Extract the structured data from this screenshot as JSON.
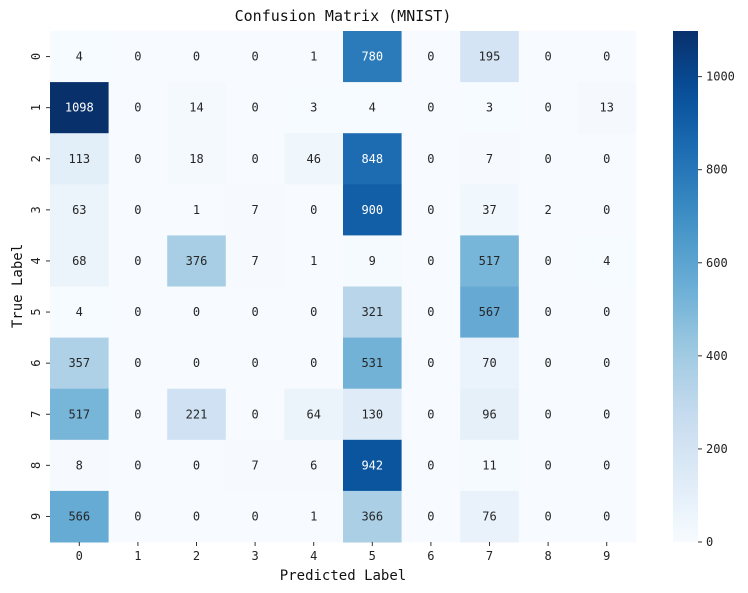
{
  "chart_data": {
    "type": "heatmap",
    "title": "Confusion Matrix (MNIST)",
    "xlabel": "Predicted Label",
    "ylabel": "True Label",
    "x_categories": [
      "0",
      "1",
      "2",
      "3",
      "4",
      "5",
      "6",
      "7",
      "8",
      "9"
    ],
    "y_categories": [
      "0",
      "1",
      "2",
      "3",
      "4",
      "5",
      "6",
      "7",
      "8",
      "9"
    ],
    "values": [
      [
        4,
        0,
        0,
        0,
        1,
        780,
        0,
        195,
        0,
        0
      ],
      [
        1098,
        0,
        14,
        0,
        3,
        4,
        0,
        3,
        0,
        13
      ],
      [
        113,
        0,
        18,
        0,
        46,
        848,
        0,
        7,
        0,
        0
      ],
      [
        63,
        0,
        1,
        7,
        0,
        900,
        0,
        37,
        2,
        0
      ],
      [
        68,
        0,
        376,
        7,
        1,
        9,
        0,
        517,
        0,
        4
      ],
      [
        4,
        0,
        0,
        0,
        0,
        321,
        0,
        567,
        0,
        0
      ],
      [
        357,
        0,
        0,
        0,
        0,
        531,
        0,
        70,
        0,
        0
      ],
      [
        517,
        0,
        221,
        0,
        64,
        130,
        0,
        96,
        0,
        0
      ],
      [
        8,
        0,
        0,
        7,
        6,
        942,
        0,
        11,
        0,
        0
      ],
      [
        566,
        0,
        0,
        0,
        1,
        366,
        0,
        76,
        0,
        0
      ]
    ],
    "colormap": "Blues",
    "colorbar": {
      "min": 0,
      "max": 1098,
      "ticks": [
        0,
        200,
        400,
        600,
        800,
        1000
      ]
    },
    "grid": false
  }
}
